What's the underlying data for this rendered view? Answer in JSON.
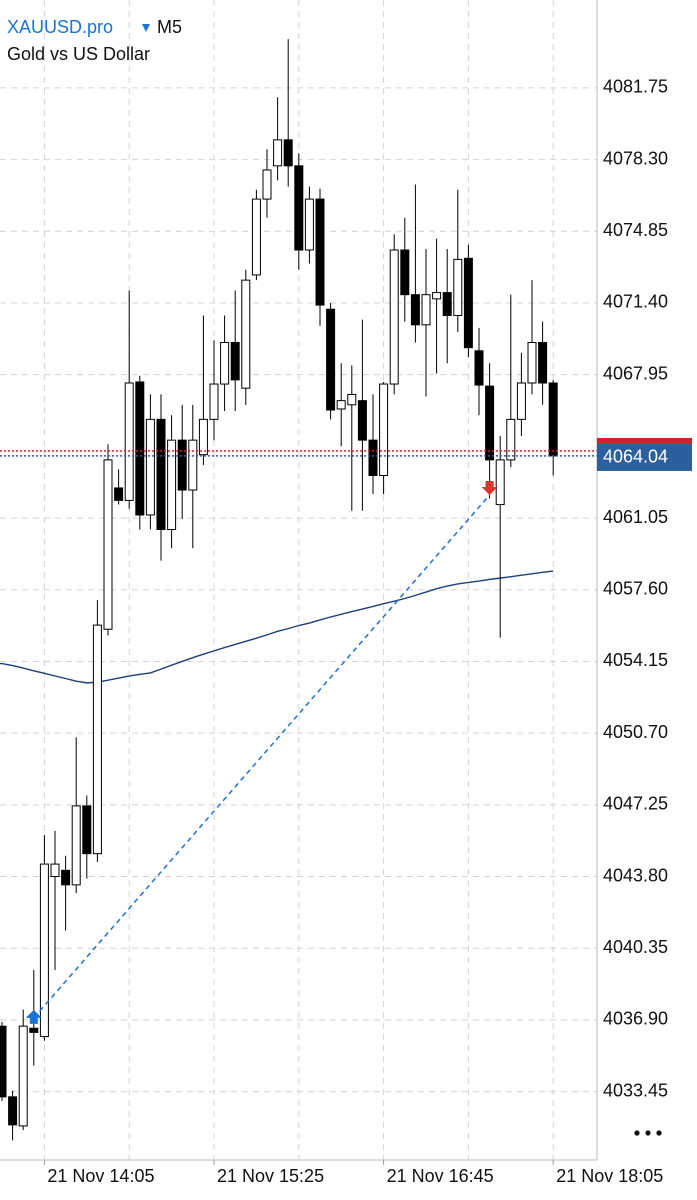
{
  "chart_data": {
    "type": "candlestick",
    "symbol": "XAUUSD.pro",
    "timeframe": "M5",
    "description": "Gold vs US Dollar",
    "categories": [
      null,
      null,
      null,
      null,
      "21 Nov 14:05",
      null,
      null,
      null,
      null,
      null,
      null,
      null,
      null,
      null,
      null,
      null,
      null,
      null,
      null,
      null,
      "21 Nov 15:25",
      null,
      null,
      null,
      null,
      null,
      null,
      null,
      null,
      null,
      null,
      null,
      null,
      null,
      null,
      null,
      "21 Nov 16:45",
      null,
      null,
      null,
      null,
      null,
      null,
      null,
      null,
      null,
      null,
      null,
      null,
      null,
      null,
      null,
      "21 Nov 18:05"
    ],
    "open": [
      4036.6,
      4033.2,
      4031.8,
      4036.5,
      4036.1,
      4043.8,
      4044.1,
      4043.4,
      4047.2,
      4044.9,
      4055.7,
      4062.5,
      4061.9,
      4067.6,
      4061.2,
      4065.8,
      4060.5,
      4064.8,
      4062.4,
      4064.1,
      4065.8,
      4067.5,
      4069.5,
      4067.3,
      4072.75,
      4076.4,
      4078.0,
      4079.25,
      4078.0,
      4073.95,
      4076.4,
      4071.1,
      4066.3,
      4066.5,
      4066.7,
      4064.8,
      4063.1,
      4067.5,
      4073.95,
      4071.8,
      4070.35,
      4071.6,
      4071.9,
      4070.8,
      4073.55,
      4069.1,
      4067.4,
      4061.7,
      4063.85,
      4065.8,
      4067.55,
      4069.5,
      4067.55
    ],
    "high": [
      4036.8,
      4033.5,
      4037.4,
      4039.3,
      4045.8,
      4046.0,
      4044.8,
      4050.5,
      4047.7,
      4057.1,
      4064.6,
      4063.4,
      4072.0,
      4067.9,
      4067.0,
      4067.0,
      4066.0,
      4066.5,
      4066.5,
      4070.8,
      4069.6,
      4070.8,
      4072.0,
      4073.0,
      4076.85,
      4078.8,
      4081.3,
      4084.1,
      4078.6,
      4077.0,
      4076.9,
      4071.4,
      4068.5,
      4068.4,
      4070.6,
      4067.0,
      4067.6,
      4074.7,
      4075.5,
      4077.1,
      4074.0,
      4074.5,
      4074.0,
      4076.85,
      4074.2,
      4070.2,
      4068.5,
      4065.0,
      4071.8,
      4069.0,
      4072.5,
      4070.5,
      4067.7
    ],
    "low": [
      4033.0,
      4031.1,
      4031.6,
      4034.7,
      4035.9,
      4039.3,
      4041.2,
      4043.0,
      4043.7,
      4044.5,
      4055.4,
      4061.7,
      4061.5,
      4060.5,
      4060.5,
      4059.0,
      4059.6,
      4061.0,
      4059.6,
      4063.6,
      4064.8,
      4066.2,
      4066.2,
      4066.5,
      4072.5,
      4075.5,
      4077.3,
      4077.0,
      4073.0,
      4073.3,
      4070.3,
      4065.8,
      4064.5,
      4061.4,
      4061.4,
      4062.2,
      4062.2,
      4067.0,
      4070.5,
      4069.5,
      4066.9,
      4068.0,
      4068.5,
      4070.0,
      4068.8,
      4066.0,
      4062.0,
      4055.3,
      4063.5,
      4065.0,
      4067.0,
      4066.5,
      4063.1
    ],
    "close": [
      4033.2,
      4031.85,
      4036.6,
      4036.3,
      4044.4,
      4044.4,
      4043.4,
      4047.2,
      4044.9,
      4055.9,
      4063.85,
      4061.9,
      4067.55,
      4061.2,
      4065.8,
      4060.5,
      4064.8,
      4062.4,
      4064.8,
      4065.8,
      4067.5,
      4069.5,
      4067.7,
      4072.5,
      4076.4,
      4077.8,
      4079.25,
      4078.0,
      4073.95,
      4076.4,
      4071.3,
      4066.25,
      4066.7,
      4067.0,
      4064.8,
      4063.1,
      4067.5,
      4073.95,
      4071.8,
      4070.35,
      4071.8,
      4071.9,
      4070.8,
      4073.5,
      4069.25,
      4067.45,
      4063.85,
      4063.85,
      4065.8,
      4067.55,
      4069.5,
      4067.55,
      4064.04
    ],
    "up_color": "#ffffff",
    "down_color": "#000000",
    "moving_average": {
      "color": "#1f3f7a",
      "values": [
        4054.05,
        4053.95,
        4053.83,
        4053.7,
        4053.58,
        4053.45,
        4053.33,
        4053.2,
        4053.12,
        4053.15,
        4053.25,
        4053.35,
        4053.45,
        4053.53,
        4053.6,
        4053.78,
        4053.97,
        4054.15,
        4054.33,
        4054.5,
        4054.66,
        4054.82,
        4054.97,
        4055.12,
        4055.27,
        4055.43,
        4055.6,
        4055.73,
        4055.88,
        4056.0,
        4056.15,
        4056.29,
        4056.42,
        4056.55,
        4056.67,
        4056.8,
        4056.93,
        4057.05,
        4057.18,
        4057.33,
        4057.49,
        4057.65,
        4057.78,
        4057.88,
        4057.95,
        4058.02,
        4058.1,
        4058.16,
        4058.23,
        4058.3,
        4058.37,
        4058.44,
        4058.5
      ]
    },
    "trade": {
      "entry_index": 3,
      "entry_price": 4037.0,
      "exit_index": 46,
      "exit_price": 4062.16,
      "color": "#1a73d9",
      "exit_color": "#e0332b"
    },
    "bid": 4064.04,
    "bid_color": "#2c5f9e",
    "ask": 4064.28,
    "ask_color": "#d0242c",
    "ylim": [
      4030.16,
      4085.98
    ],
    "yticks": [
      4081.75,
      {
        "value": 4078.3,
        "label": "4078.30"
      },
      4074.85,
      {
        "value": 4071.4,
        "label": "4071.40"
      },
      4067.95,
      4061.05,
      {
        "value": 4057.6,
        "label": "4057.60"
      },
      4054.15,
      {
        "value": 4050.7,
        "label": "4050.70"
      },
      4047.25,
      {
        "value": 4043.8,
        "label": "4043.80"
      },
      4040.35,
      {
        "value": 4036.9,
        "label": "4036.90"
      },
      4033.45
    ],
    "grid": true
  }
}
